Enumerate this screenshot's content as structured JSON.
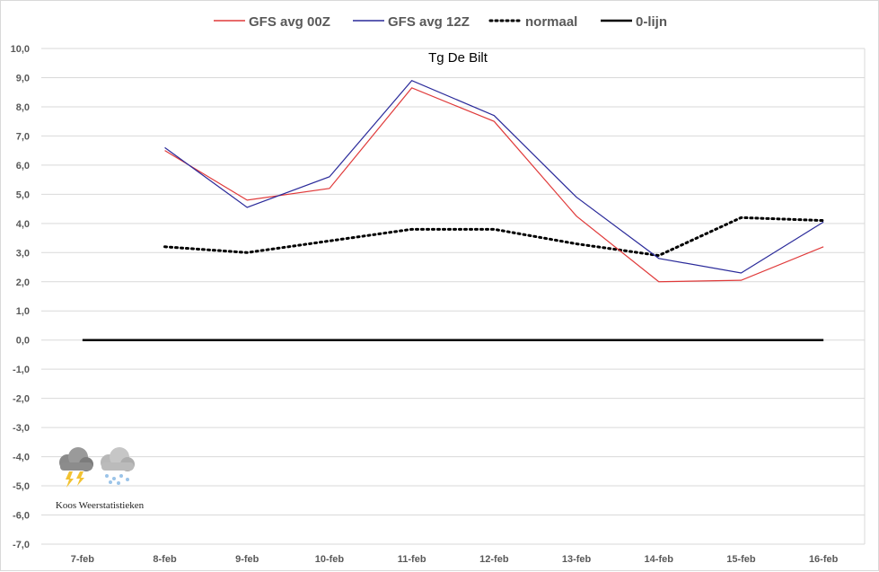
{
  "chart_data": {
    "type": "line",
    "title": "Tg De Bilt",
    "categories": [
      "7-feb",
      "8-feb",
      "9-feb",
      "10-feb",
      "11-feb",
      "12-feb",
      "13-feb",
      "14-feb",
      "15-feb",
      "16-feb"
    ],
    "ylim": [
      -7,
      10
    ],
    "yticks": [
      "10,0",
      "9,0",
      "8,0",
      "7,0",
      "6,0",
      "5,0",
      "4,0",
      "3,0",
      "2,0",
      "1,0",
      "0,0",
      "-1,0",
      "-2,0",
      "-3,0",
      "-4,0",
      "-5,0",
      "-6,0",
      "-7,0"
    ],
    "grid": true,
    "legend_position": "top",
    "series": [
      {
        "name": "GFS avg 00Z",
        "color": "#e03a3a",
        "style": "solid",
        "values": [
          null,
          6.5,
          4.8,
          5.2,
          8.65,
          7.5,
          4.25,
          2.0,
          2.05,
          3.2
        ]
      },
      {
        "name": "GFS avg 12Z",
        "color": "#2a2a9a",
        "style": "solid",
        "values": [
          null,
          6.6,
          4.55,
          5.6,
          8.9,
          7.7,
          4.9,
          2.8,
          2.3,
          4.05
        ]
      },
      {
        "name": "normaal",
        "color": "#000000",
        "style": "dotted",
        "values": [
          null,
          3.2,
          3.0,
          3.4,
          3.8,
          3.8,
          3.3,
          2.9,
          4.2,
          4.1
        ]
      },
      {
        "name": "0-lijn",
        "color": "#000000",
        "style": "thick",
        "values": [
          0,
          0,
          0,
          0,
          0,
          0,
          0,
          0,
          0,
          0
        ]
      }
    ]
  },
  "watermark": {
    "text": "Koos Weerstatistieken",
    "icons": [
      "thunderstorm-cloud-icon",
      "snow-cloud-icon"
    ]
  }
}
